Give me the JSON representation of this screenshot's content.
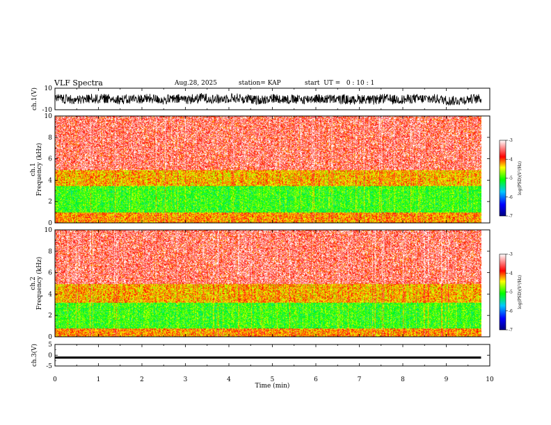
{
  "header": {
    "title": "VLF Spectra",
    "date": "Aug.28, 2025",
    "station": "station= KAP",
    "start_ut": "start  UT =   0 : 10 : 1"
  },
  "colors": {
    "spectrogram": [
      "#000080",
      "#0000ff",
      "#00c8ff",
      "#00ff00",
      "#ffff00",
      "#ff0000",
      "#ffffff"
    ],
    "axis": "#000000"
  },
  "chart_data": [
    {
      "type": "line",
      "name": "ch1-waveform",
      "ylabel": "ch.1(V)",
      "ylim": [
        -10,
        10
      ],
      "yticks": [
        "10",
        "-10"
      ],
      "xlim": [
        0,
        10
      ],
      "values_note": "dense noise waveform, roughly between -8 and +8 V"
    },
    {
      "type": "heatmap",
      "name": "ch1-spectrogram",
      "ylabel": "ch.1 Frequency  (kHz)",
      "ylim": [
        0,
        10
      ],
      "yticks": [
        "0",
        "2",
        "4",
        "6",
        "8",
        "10"
      ],
      "xlim": [
        0,
        9.8
      ],
      "colorbar": {
        "label": "log(PSD)(V²/Hz)",
        "range": [
          -7,
          -3
        ],
        "ticks": [
          "-3",
          "-4",
          "-5",
          "-6",
          "-7"
        ]
      },
      "bands_khz": [
        {
          "from": 0.0,
          "to": 1.0,
          "level": -4.2
        },
        {
          "from": 1.0,
          "to": 3.5,
          "level": -5.0
        },
        {
          "from": 3.5,
          "to": 5.0,
          "level": -4.3
        },
        {
          "from": 5.0,
          "to": 10.0,
          "level": -3.8
        }
      ]
    },
    {
      "type": "heatmap",
      "name": "ch2-spectrogram",
      "ylabel": "ch.2 Frequency  (kHz)",
      "ylim": [
        0,
        10
      ],
      "yticks": [
        "0",
        "2",
        "4",
        "6",
        "8",
        "10"
      ],
      "xlim": [
        0,
        9.8
      ],
      "colorbar": {
        "label": "log(PSD)(V²/Hz)",
        "range": [
          -7,
          -3
        ],
        "ticks": [
          "-3",
          "-4",
          "-5",
          "-6",
          "-7"
        ]
      },
      "bands_khz": [
        {
          "from": 0.0,
          "to": 0.8,
          "level": -4.2
        },
        {
          "from": 0.8,
          "to": 3.2,
          "level": -5.0
        },
        {
          "from": 3.2,
          "to": 5.0,
          "level": -4.3
        },
        {
          "from": 5.0,
          "to": 10.0,
          "level": -3.8
        }
      ]
    },
    {
      "type": "line",
      "name": "ch3-waveform",
      "ylabel": "ch.3(V)",
      "ylim": [
        -5,
        5
      ],
      "yticks": [
        "5",
        "0",
        "-5"
      ],
      "xlim": [
        0,
        10
      ],
      "values_note": "constant thick trace near -1 V"
    }
  ],
  "xaxis": {
    "label": "Time  (min)",
    "ticks": [
      "0",
      "1",
      "2",
      "3",
      "4",
      "5",
      "6",
      "7",
      "8",
      "9",
      "10"
    ],
    "range": [
      0,
      10
    ]
  }
}
